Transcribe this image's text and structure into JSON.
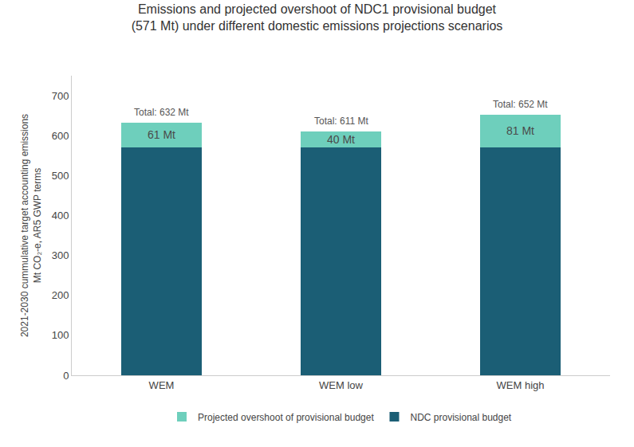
{
  "chart_data": {
    "type": "bar",
    "stacked": true,
    "title": "Emissions and projected overshoot of NDC1 provisional budget\n(571 Mt) under different domestic emissions projections scenarios",
    "ylabel": "2021-2030 cummulative target accounting emissions\nMt CO₂-e, AR5 GWP terms",
    "categories": [
      "WEM",
      "WEM low",
      "WEM high"
    ],
    "series": [
      {
        "name": "NDC provisional budget",
        "color": "#1b5e75",
        "values": [
          571,
          571,
          571
        ]
      },
      {
        "name": "Projected overshoot of provisional budget",
        "color": "#6ecfbc",
        "values": [
          61,
          40,
          81
        ],
        "value_labels": [
          "61 Mt",
          "40 Mt",
          "81 Mt"
        ]
      }
    ],
    "annotations": [
      {
        "x": "WEM",
        "y": 632,
        "text": "Total: 632 Mt"
      },
      {
        "x": "WEM low",
        "y": 611,
        "text": "Total: 611 Mt"
      },
      {
        "x": "WEM high",
        "y": 652,
        "text": "Total: 652 Mt"
      }
    ],
    "ylim": [
      0,
      750
    ],
    "yticks": [
      0,
      100,
      200,
      300,
      400,
      500,
      600,
      700
    ],
    "grid": false,
    "legend": "bottom"
  }
}
